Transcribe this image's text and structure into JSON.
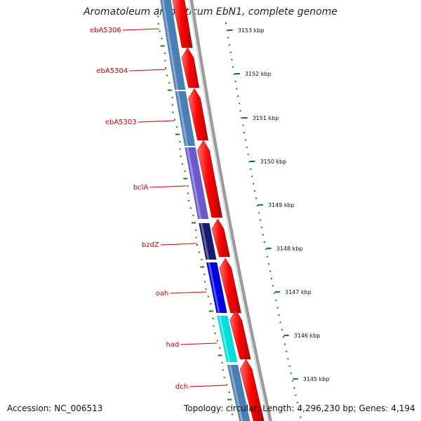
{
  "header": {
    "title": "Aromatoleum aromaticum EbN1, complete genome"
  },
  "footer": {
    "accession": "Accession: NC_006513",
    "topology": "Topology: circular; Length: 4,296,230 bp; Genes: 4,194"
  },
  "genes": [
    {
      "name": "ebA5306",
      "color": "#4a7fb5"
    },
    {
      "name": "ebA5304",
      "color": "#4a7fb5"
    },
    {
      "name": "ebA5303",
      "color": "#4a7fb5"
    },
    {
      "name": "bclA",
      "color": "#6a5acd"
    },
    {
      "name": "bzdZ",
      "color": "#1a1a6e"
    },
    {
      "name": "oah",
      "color": "#0000dd"
    },
    {
      "name": "had",
      "color": "#00dddd"
    },
    {
      "name": "dch",
      "color": "#4a7fb5"
    }
  ],
  "ticks": [
    "3153 kbp",
    "3152 kbp",
    "3151 kbp",
    "3150 kbp",
    "3149 kbp",
    "3148 kbp",
    "3147 kbp",
    "3146 kbp",
    "3145 kbp"
  ],
  "colors": {
    "forward_strand": "#ff0000",
    "backbone": "#888888",
    "gc_dots": "#1a7a1a",
    "label_text": "#cc0000"
  }
}
